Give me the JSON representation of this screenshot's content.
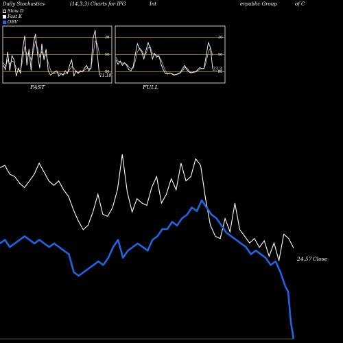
{
  "header": {
    "title": "Daily Stochastics",
    "params": "(14,3,3) Charts for IPG",
    "company_part1": "Int",
    "company_part2": "erpublic Group",
    "company_part3": "of C"
  },
  "legend": [
    {
      "label": "Slow  D",
      "color": "#000000"
    },
    {
      "label": "Fast K",
      "color": "#ffffff"
    },
    {
      "label": "OBV",
      "color": "#1e66e6"
    }
  ],
  "panels": [
    {
      "label": "FAST",
      "last_value": "11.18"
    },
    {
      "label": "FULL",
      "last_value": "23.3"
    }
  ],
  "colors": {
    "price": "#ffffff",
    "obv": "#1e66e6",
    "band": "#b8860b",
    "stoch_d": "#aaaaaa",
    "stoch_k": "#ffffff"
  },
  "chart_data": [
    {
      "type": "line",
      "title": "FAST",
      "ylim": [
        0,
        100
      ],
      "reference_lines": [
        20,
        50,
        80
      ],
      "y_ticks": [
        "80",
        "50",
        "20"
      ],
      "series": [
        {
          "name": "Fast K",
          "values": [
            30,
            22,
            55,
            20,
            48,
            40,
            10,
            25,
            15,
            60,
            85,
            30,
            60,
            20,
            70,
            88,
            50,
            25,
            70,
            40,
            60,
            20,
            12,
            15,
            18,
            20,
            10,
            15,
            12,
            20,
            15,
            30,
            40,
            10,
            20,
            15,
            20,
            18,
            25,
            30,
            20,
            25,
            80,
            95,
            50,
            11.18
          ]
        },
        {
          "name": "Slow  D",
          "values": [
            35,
            28,
            40,
            32,
            38,
            36,
            25,
            22,
            20,
            40,
            65,
            50,
            52,
            40,
            55,
            75,
            62,
            45,
            55,
            45,
            50,
            35,
            22,
            15,
            15,
            17,
            16,
            14,
            13,
            15,
            16,
            22,
            28,
            25,
            18,
            17,
            18,
            19,
            21,
            25,
            25,
            24,
            50,
            75,
            70,
            50
          ]
        }
      ]
    },
    {
      "type": "line",
      "title": "FULL",
      "ylim": [
        0,
        100
      ],
      "reference_lines": [
        20,
        50,
        80
      ],
      "y_ticks": [
        "80",
        "50",
        "20"
      ],
      "series": [
        {
          "name": "Fast K",
          "values": [
            40,
            32,
            38,
            30,
            35,
            30,
            22,
            20,
            28,
            50,
            70,
            60,
            55,
            42,
            58,
            72,
            60,
            42,
            52,
            45,
            48,
            32,
            22,
            15,
            14,
            16,
            14,
            12,
            13,
            15,
            17,
            24,
            30,
            22,
            18,
            16,
            18,
            18,
            22,
            26,
            24,
            25,
            48,
            72,
            62,
            23.3
          ]
        },
        {
          "name": "Slow  D",
          "values": [
            45,
            38,
            36,
            34,
            34,
            32,
            27,
            24,
            25,
            38,
            55,
            62,
            58,
            50,
            52,
            62,
            64,
            52,
            50,
            48,
            46,
            40,
            30,
            20,
            15,
            15,
            15,
            13,
            13,
            14,
            16,
            20,
            26,
            25,
            20,
            17,
            17,
            18,
            20,
            23,
            24,
            24,
            36,
            55,
            62,
            48
          ]
        }
      ]
    },
    {
      "type": "line",
      "title": "",
      "xlabel": "",
      "ylabel": "",
      "series": [
        {
          "name": "Close",
          "values": [
            28.2,
            28.3,
            27.9,
            27.8,
            27.5,
            27.3,
            27.6,
            27.9,
            28.4,
            28.0,
            27.6,
            27.4,
            27.6,
            27.2,
            26.9,
            26.3,
            25.8,
            25.4,
            25.6,
            26.2,
            27.0,
            26.1,
            26.0,
            26.4,
            27.2,
            28.8,
            27.1,
            26.2,
            26.8,
            26.6,
            26.5,
            27.3,
            27.8,
            26.6,
            27.0,
            27.7,
            27.2,
            28.4,
            27.6,
            27.8,
            28.6,
            28.3,
            26.8,
            25.6,
            25.1,
            25.0,
            25.9,
            25.3,
            26.6,
            25.4,
            25.1,
            24.8,
            25.0,
            24.6,
            24.9,
            24.2,
            24.8,
            24.0,
            25.2,
            25.0,
            24.57
          ]
        },
        {
          "name": "OBV",
          "values": [
            0,
            1,
            -1,
            0,
            1,
            2,
            1,
            0,
            1,
            0,
            -1,
            0,
            -1,
            -2,
            -3,
            -8,
            -9,
            -8,
            -7,
            -6,
            -5,
            -6,
            -4,
            -1,
            1,
            -4,
            -2,
            -1,
            0,
            -1,
            -2,
            1,
            2,
            4,
            4,
            6,
            5,
            7,
            8,
            10,
            9,
            12,
            10,
            8,
            7,
            5,
            3,
            2,
            1,
            0,
            -1,
            -3,
            -2,
            -3,
            -4,
            -6,
            -5,
            -8,
            -12,
            -14,
            -19
          ]
        }
      ],
      "labels": {
        "close_value": "24.57",
        "close_text": "Close"
      }
    }
  ]
}
